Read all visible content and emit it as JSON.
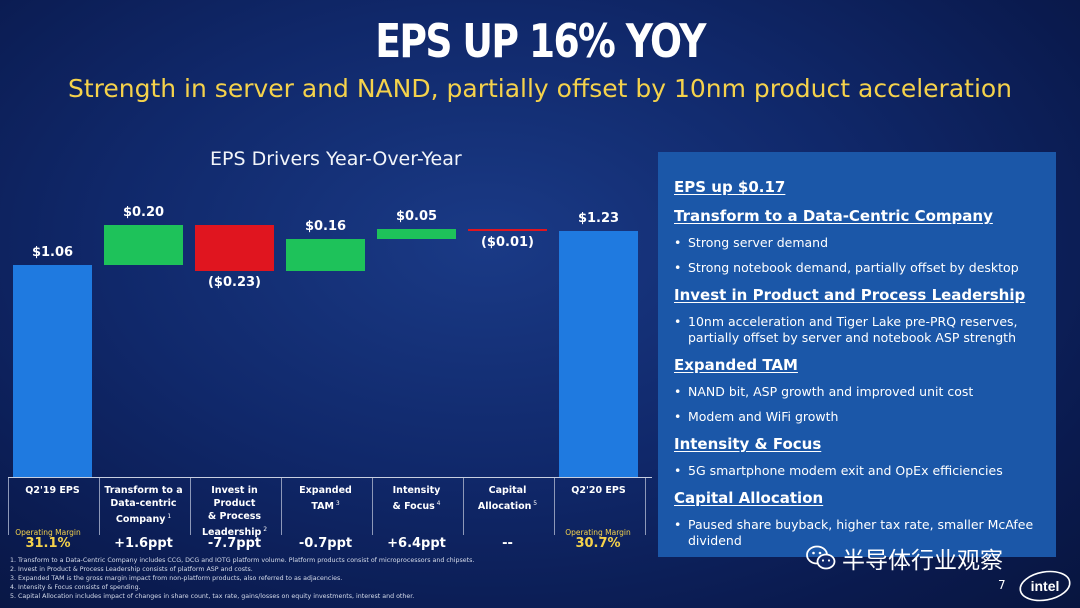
{
  "slide": {
    "title": "EPS UP 16% YOY",
    "subtitle": "Strength in server and NAND, partially offset by 10nm product acceleration",
    "page_number": "7",
    "colors": {
      "background": "#10286a",
      "accent_yellow": "#f5d24b",
      "bar_blue": "#1f7ae0",
      "bar_green": "#1ec25a",
      "bar_red": "#e0151f",
      "panel": "#1b57a8"
    }
  },
  "chart_data": {
    "type": "bar",
    "subtype": "waterfall",
    "title": "EPS Drivers Year-Over-Year",
    "categories": [
      {
        "lines": [
          "Q2'19 EPS"
        ],
        "note": ""
      },
      {
        "lines": [
          "Transform to a",
          "Data-centric",
          "Company"
        ],
        "note": "1"
      },
      {
        "lines": [
          "Invest in Product",
          "& Process",
          "Leadership"
        ],
        "note": "2"
      },
      {
        "lines": [
          "Expanded",
          "TAM"
        ],
        "note": "3"
      },
      {
        "lines": [
          "Intensity",
          "& Focus"
        ],
        "note": "4"
      },
      {
        "lines": [
          "Capital",
          "Allocation"
        ],
        "note": "5"
      },
      {
        "lines": [
          "Q2'20 EPS"
        ],
        "note": ""
      }
    ],
    "values": [
      1.06,
      0.2,
      -0.23,
      0.16,
      0.05,
      -0.01,
      1.23
    ],
    "kinds": [
      "total",
      "delta",
      "delta",
      "delta",
      "delta",
      "delta",
      "total"
    ],
    "value_labels": [
      "$1.06",
      "$0.20",
      "($0.23)",
      "$0.16",
      "$0.05",
      "($0.01)",
      "$1.23"
    ],
    "margin_deltas": [
      "",
      "+1.6ppt",
      "-7.7ppt",
      "-0.7ppt",
      "+6.4ppt",
      "--",
      ""
    ],
    "operating_margin": {
      "label": "Operating Margin",
      "start": "31.1%",
      "end": "30.7%"
    },
    "colors": {
      "total": "#1f7ae0",
      "increase": "#1ec25a",
      "decrease": "#e0151f"
    }
  },
  "footnotes": [
    "1. Transform to a Data-Centric Company includes CCG, DCG and IOTG platform volume.  Platform products consist of microprocessors and chipsets.",
    "2. Invest in Product & Process Leadership consists of platform ASP and costs.",
    "3. Expanded TAM is the gross margin impact from non-platform products, also referred to as adjacencies.",
    "4. Intensity & Focus consists of spending.",
    "5. Capital Allocation includes impact of changes in share count, tax rate, gains/losses on equity investments, interest and other."
  ],
  "panel": {
    "sections": [
      {
        "heading": "EPS up $0.17",
        "bullets": []
      },
      {
        "heading": "Transform to a Data-Centric Company",
        "bullets": [
          "Strong server demand",
          "Strong notebook demand, partially offset by desktop"
        ]
      },
      {
        "heading": "Invest in Product and Process Leadership",
        "bullets": [
          "10nm acceleration and Tiger Lake pre-PRQ reserves, partially offset by server and notebook ASP strength"
        ]
      },
      {
        "heading": "Expanded TAM",
        "bullets": [
          "NAND bit, ASP growth and improved unit cost",
          "Modem and WiFi growth"
        ]
      },
      {
        "heading": "Intensity & Focus",
        "bullets": [
          "5G smartphone modem exit and OpEx efficiencies"
        ]
      },
      {
        "heading": "Capital Allocation",
        "bullets": [
          "Paused share buyback, higher tax rate, smaller McAfee dividend"
        ]
      }
    ]
  },
  "watermark": {
    "text": "半导体行业观察",
    "icon": "wechat-icon"
  },
  "logo": {
    "text": "intel",
    "icon": "intel-logo"
  }
}
